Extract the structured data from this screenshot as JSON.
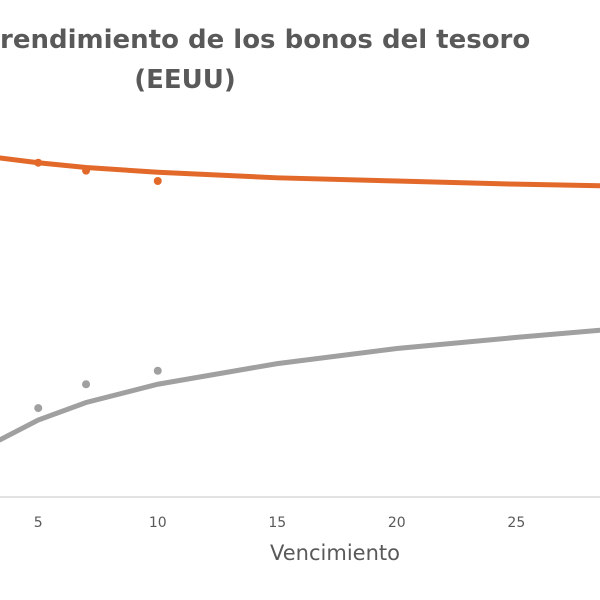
{
  "chart_data": {
    "type": "scatter",
    "title": [
      "rendimiento de los bonos del tesoro",
      "(EEUU)"
    ],
    "x_label": "Vencimiento",
    "xlim": [
      3.4,
      28.5
    ],
    "xticks": [
      5,
      10,
      15,
      20,
      25
    ],
    "ylim": [
      0,
      5
    ],
    "series": [
      {
        "kind": "points",
        "color": "#e2692a",
        "x": [
          5,
          7,
          10
        ],
        "values": [
          4.21,
          4.11,
          3.98
        ]
      },
      {
        "kind": "points",
        "color": "#a0a0a0",
        "x": [
          5,
          7,
          10
        ],
        "values": [
          1.12,
          1.42,
          1.59
        ]
      },
      {
        "kind": "trend",
        "color": "#e2692a",
        "x": [
          3.4,
          5,
          7,
          10,
          15,
          20,
          25,
          28.5
        ],
        "values": [
          4.27,
          4.21,
          4.15,
          4.09,
          4.02,
          3.98,
          3.94,
          3.92
        ]
      },
      {
        "kind": "trend",
        "color": "#a0a0a0",
        "x": [
          3.4,
          5,
          7,
          10,
          15,
          20,
          25,
          28.5
        ],
        "values": [
          0.72,
          0.97,
          1.19,
          1.42,
          1.68,
          1.87,
          2.01,
          2.1
        ]
      }
    ]
  }
}
